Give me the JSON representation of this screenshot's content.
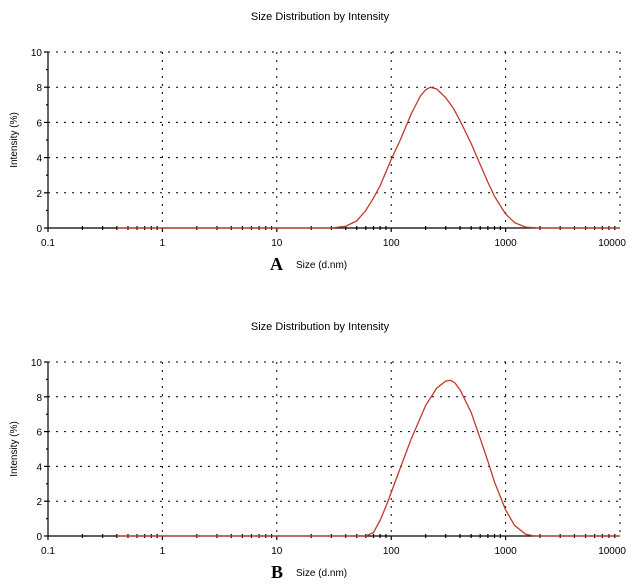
{
  "chart_data": [
    {
      "type": "line",
      "title": "Size Distribution by Intensity",
      "panel_label": "A",
      "xlabel": "Size (d.nm)",
      "ylabel": "Intensity (%)",
      "xscale": "log",
      "xlim": [
        0.1,
        10000
      ],
      "ylim": [
        0,
        10
      ],
      "xticks": [
        "0.1",
        "1",
        "10",
        "100",
        "1000",
        "10000"
      ],
      "yticks": [
        "0",
        "2",
        "4",
        "6",
        "8",
        "10"
      ],
      "grid": true,
      "series_color": "#c0392b",
      "series": [
        {
          "x": [
            0.4,
            30,
            40,
            50,
            60,
            70,
            80,
            100,
            120,
            150,
            180,
            200,
            220,
            250,
            300,
            350,
            400,
            500,
            600,
            700,
            800,
            1000,
            1200,
            1500,
            2000,
            10000
          ],
          "y": [
            0,
            0,
            0.1,
            0.4,
            1.0,
            1.7,
            2.4,
            3.9,
            5.0,
            6.5,
            7.5,
            7.85,
            8.0,
            7.9,
            7.4,
            6.8,
            6.1,
            4.8,
            3.6,
            2.6,
            1.8,
            0.8,
            0.3,
            0.05,
            0,
            0
          ]
        }
      ]
    },
    {
      "type": "line",
      "title": "Size Distribution by Intensity",
      "panel_label": "B",
      "xlabel": "Size (d.nm)",
      "ylabel": "Intensity (%)",
      "xscale": "log",
      "xlim": [
        0.1,
        10000
      ],
      "ylim": [
        0,
        10
      ],
      "xticks": [
        "0.1",
        "1",
        "10",
        "100",
        "1000",
        "10000"
      ],
      "yticks": [
        "0",
        "2",
        "4",
        "6",
        "8",
        "10"
      ],
      "grid": true,
      "series_color": "#c0392b",
      "series": [
        {
          "x": [
            0.4,
            60,
            70,
            80,
            90,
            100,
            120,
            150,
            200,
            250,
            300,
            330,
            360,
            400,
            500,
            600,
            700,
            800,
            1000,
            1200,
            1500,
            1800,
            10000
          ],
          "y": [
            0,
            0,
            0.2,
            0.9,
            1.7,
            2.5,
            3.9,
            5.6,
            7.5,
            8.5,
            8.9,
            8.95,
            8.8,
            8.4,
            7.1,
            5.6,
            4.3,
            3.1,
            1.5,
            0.6,
            0.1,
            0,
            0
          ]
        }
      ]
    }
  ]
}
